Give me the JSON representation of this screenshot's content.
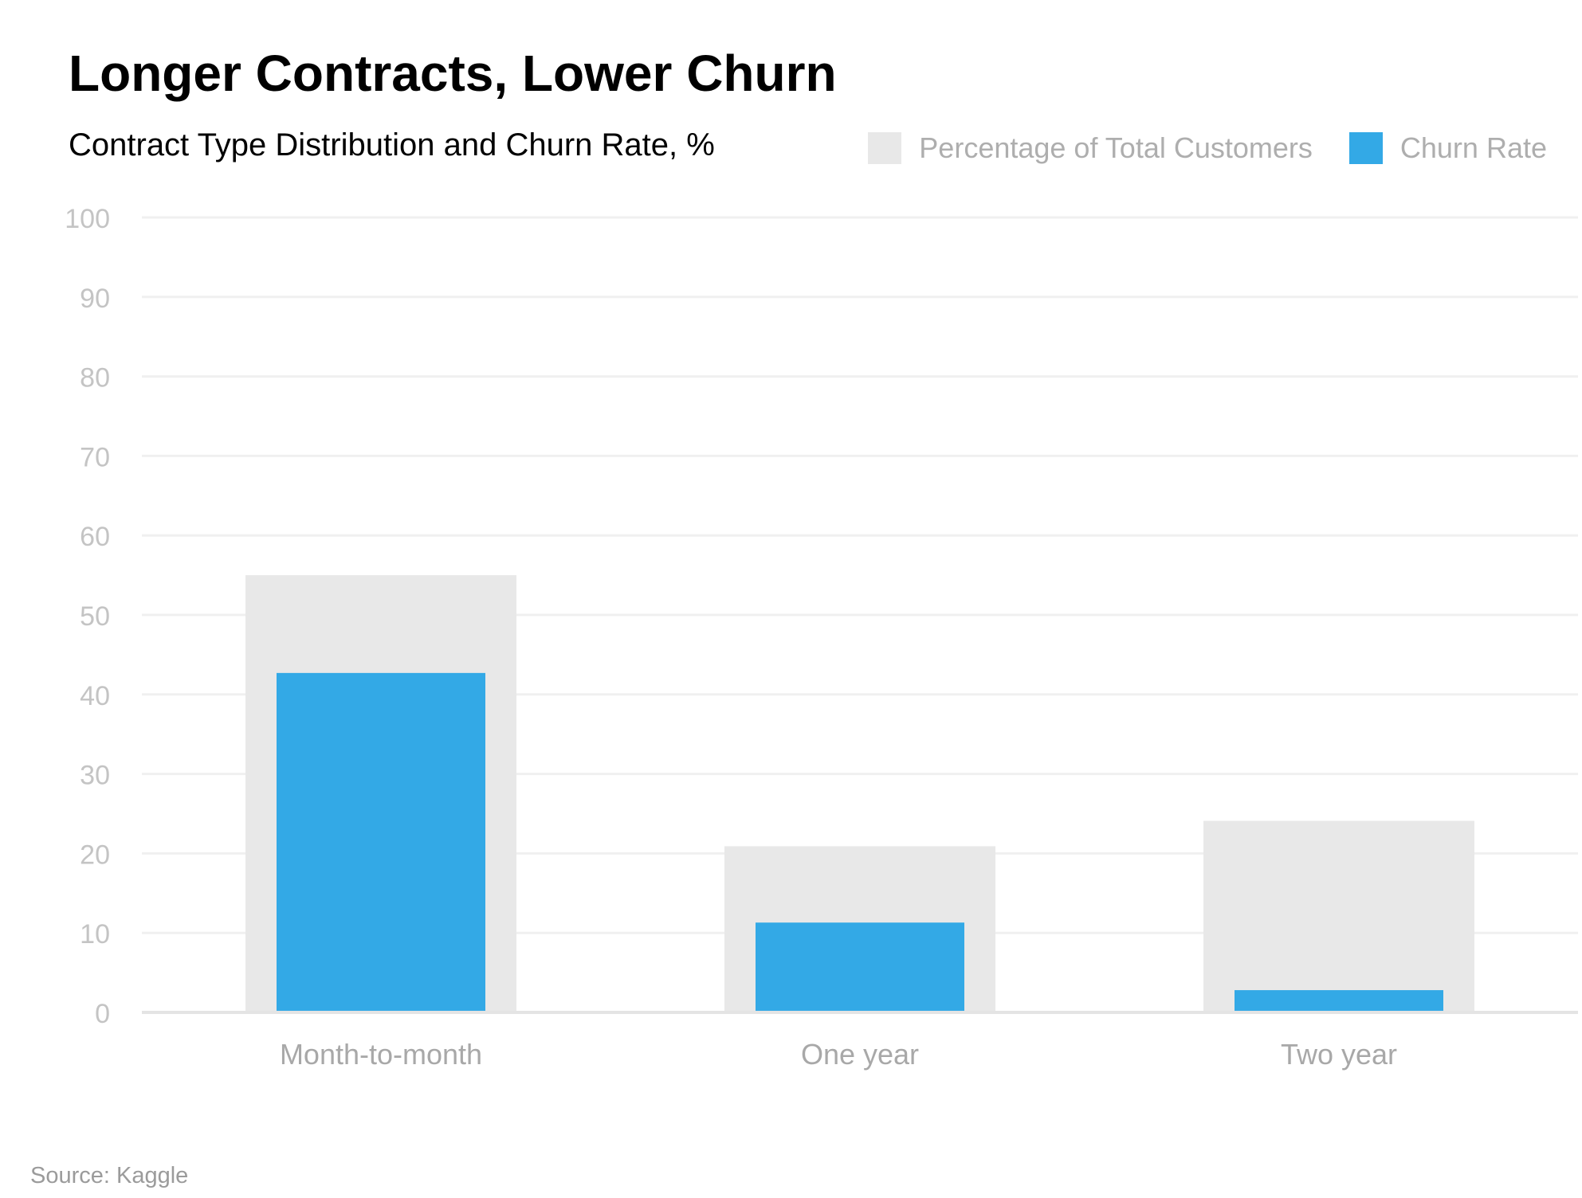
{
  "chart_data": {
    "type": "bar",
    "title": "Longer Contracts, Lower Churn",
    "subtitle": "Contract Type Distribution and Churn Rate, %",
    "categories": [
      "Month-to-month",
      "One year",
      "Two year"
    ],
    "series": [
      {
        "name": "Percentage of Total Customers",
        "values": [
          55.0,
          20.9,
          24.1
        ],
        "color": "#e8e8e8"
      },
      {
        "name": "Churn Rate",
        "values": [
          42.7,
          11.3,
          2.8
        ],
        "color": "#33a9e6"
      }
    ],
    "ylim": [
      0,
      100
    ],
    "yticks": [
      "0",
      "10",
      "20",
      "30",
      "40",
      "50",
      "60",
      "70",
      "80",
      "90",
      "100"
    ],
    "grid": true,
    "legend": "top-right",
    "source": "Source: Kaggle"
  }
}
